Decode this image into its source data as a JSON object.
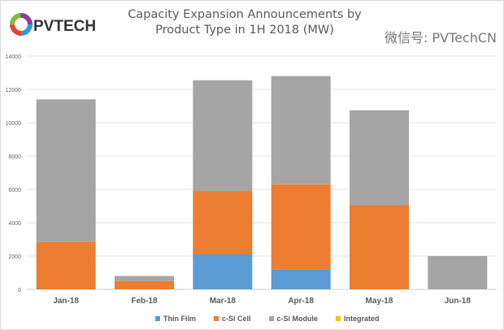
{
  "logo_text": "PVTECH",
  "watermark": "微信号: PVTechCN",
  "chart_data": {
    "type": "bar",
    "stacked": true,
    "title": "Capacity Expansion Announcements by Product Type in 1H 2018 (MW)",
    "title_lines": [
      "Capacity Expansion Announcements by",
      "Product Type in 1H 2018 (MW)"
    ],
    "categories": [
      "Jan-18",
      "Feb-18",
      "Mar-18",
      "Apr-18",
      "May-18",
      "Jun-18"
    ],
    "series": [
      {
        "name": "Thin Film",
        "color": "#5b9bd5",
        "values": [
          0,
          0,
          2100,
          1200,
          0,
          0
        ]
      },
      {
        "name": "c-Si Cell",
        "color": "#ed7d31",
        "values": [
          2850,
          500,
          3800,
          5100,
          5050,
          0
        ]
      },
      {
        "name": "c-Si Module",
        "color": "#a5a5a5",
        "values": [
          8550,
          300,
          6650,
          6500,
          5700,
          2000
        ]
      },
      {
        "name": "Integrated",
        "color": "#ffc000",
        "values": [
          0,
          0,
          0,
          0,
          0,
          0
        ]
      }
    ],
    "ylim": [
      0,
      14000
    ],
    "yticks": [
      0,
      2000,
      4000,
      6000,
      8000,
      10000,
      12000,
      14000
    ],
    "grid": true,
    "legend": "bottom",
    "xlabel": "",
    "ylabel": ""
  }
}
